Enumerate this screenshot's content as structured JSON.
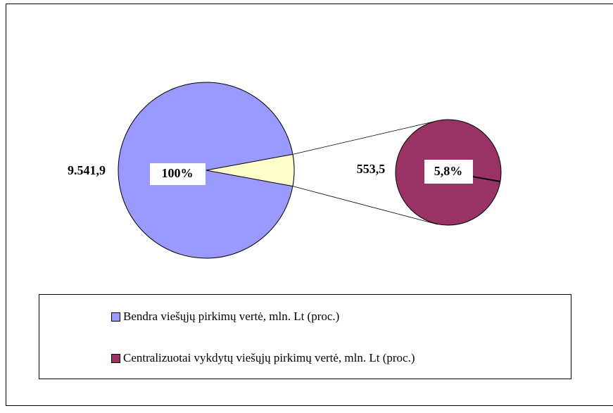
{
  "chart_data": {
    "type": "pie-of-pie",
    "labels": [
      "Bendra viešųjų pirkimų vertė, mln. Lt (proc.)",
      "Centralizuotai vykdytų viešųjų pirkimų vertė, mln. Lt (proc.)"
    ],
    "values": [
      9541.9,
      553.5
    ],
    "value_labels": [
      "9.541,9",
      "553,5"
    ],
    "percents": [
      100,
      5.8
    ],
    "percent_labels": [
      "100%",
      "5,8%"
    ],
    "colors": [
      "#9999ff",
      "#993366"
    ],
    "split_color": "#ffffcc"
  }
}
